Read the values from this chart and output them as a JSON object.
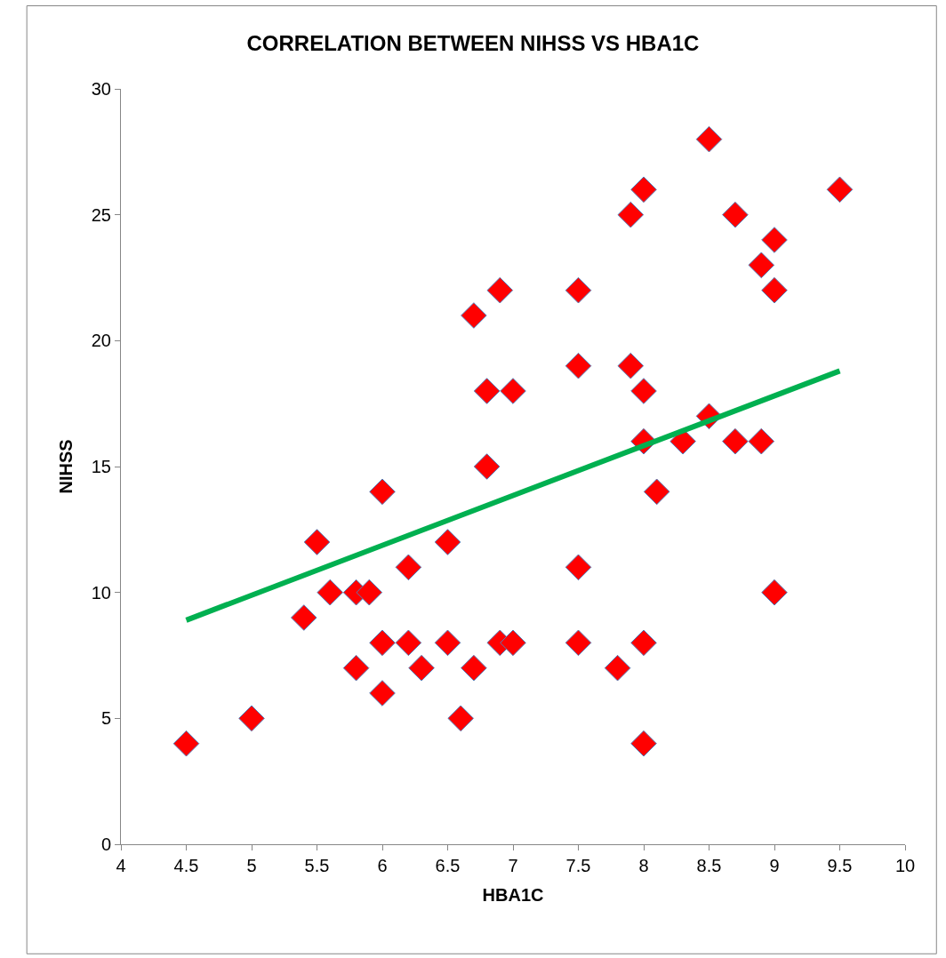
{
  "chart_data": {
    "type": "scatter",
    "title": "CORRELATION BETWEEN NIHSS VS HBA1C",
    "xlabel": "HBA1C",
    "ylabel": "NIHSS",
    "xlim": [
      4,
      10
    ],
    "xticks": [
      4,
      4.5,
      5,
      5.5,
      6,
      6.5,
      7,
      7.5,
      8,
      8.5,
      9,
      9.5,
      10
    ],
    "ylim": [
      0,
      30
    ],
    "yticks": [
      0,
      5,
      10,
      15,
      20,
      25,
      30
    ],
    "series": [
      {
        "marker": "diamond",
        "color": "#ff0000",
        "x": [
          4.5,
          5,
          5.4,
          5.5,
          5.6,
          5.8,
          5.8,
          5.9,
          6,
          6,
          6,
          6.2,
          6.2,
          6.3,
          6.5,
          6.5,
          6.6,
          6.7,
          6.7,
          6.8,
          6.8,
          6.9,
          6.9,
          7,
          7,
          7.5,
          7.5,
          7.5,
          7.5,
          7.8,
          7.9,
          7.9,
          8,
          8,
          8,
          8,
          8,
          8.1,
          8.3,
          8.5,
          8.5,
          8.7,
          8.7,
          8.9,
          8.9,
          9,
          9,
          9,
          9.5
        ],
        "values": [
          4,
          5,
          9,
          12,
          10,
          7,
          10,
          10,
          14,
          8,
          6,
          11,
          8,
          7,
          12,
          8,
          5,
          21,
          7,
          18,
          15,
          22,
          8,
          18,
          8,
          22,
          19,
          11,
          8,
          7,
          25,
          19,
          26,
          18,
          16,
          8,
          4,
          14,
          16,
          28,
          17,
          25,
          16,
          23,
          16,
          24,
          22,
          10,
          26
        ]
      },
      {
        "type": "line",
        "marker": "none",
        "color": "#00b050",
        "line_style": "solid",
        "x": [
          4.5,
          9.5
        ],
        "values": [
          8.9,
          18.8
        ]
      }
    ]
  }
}
